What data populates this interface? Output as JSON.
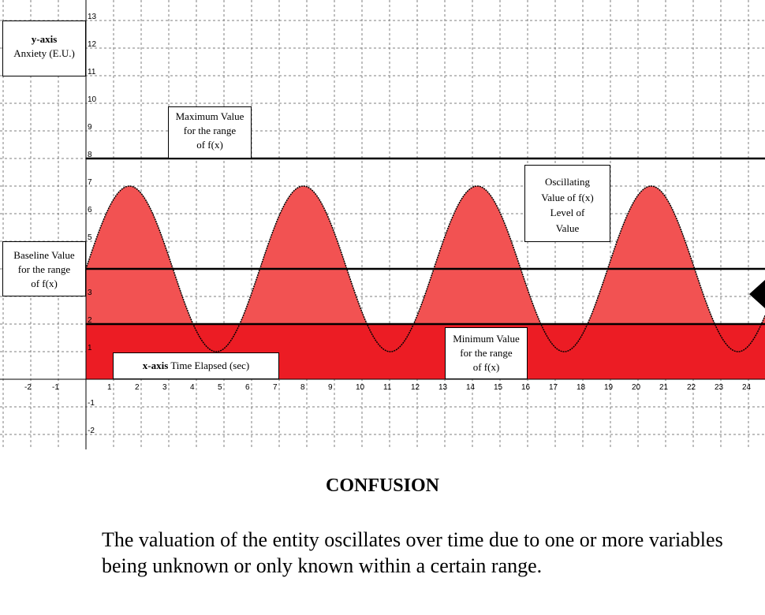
{
  "chart_data": {
    "type": "area",
    "x_ticks": [
      -2,
      -1,
      1,
      2,
      3,
      4,
      5,
      6,
      7,
      8,
      9,
      10,
      11,
      12,
      13,
      14,
      15,
      16,
      17,
      18,
      19,
      20,
      21,
      22,
      23,
      24
    ],
    "y_ticks": [
      -2,
      -1,
      1,
      2,
      3,
      5,
      6,
      7,
      8,
      9,
      10,
      11,
      12,
      13
    ],
    "xlim": [
      -3.1,
      24.6
    ],
    "ylim": [
      -2.5,
      13.5
    ],
    "grid": true,
    "grid_style": "dashed",
    "series": [
      {
        "function": "sine",
        "baseline": 4,
        "amplitude": 3,
        "period": 6.3,
        "x_start": 0,
        "x_end": 24.6,
        "fill_above_baseline": "#f25252",
        "fill_below_baseline": "#ec1c24"
      }
    ],
    "reference_lines": [
      {
        "y": 8
      },
      {
        "y": 4
      },
      {
        "y": 2
      }
    ],
    "annotations": {
      "y_axis": {
        "bold": "y-axis",
        "text": "Anxiety (E.U.)"
      },
      "x_axis": {
        "bold": "x-axis",
        "text": "Time Elapsed (sec)"
      },
      "maximum": [
        "Maximum Value",
        "for the range",
        "of f(x)"
      ],
      "baseline": [
        "Baseline Value",
        "for the range",
        "of f(x)"
      ],
      "minimum": [
        "Minimum Value",
        "for the range",
        "of f(x)"
      ],
      "oscillating": [
        "Oscillating",
        "Value of f(x)",
        "Level of",
        "Value"
      ]
    }
  },
  "title": "CONFUSION",
  "description": "The valuation of the entity oscillates over time due to one or more variables being unknown or only known within a certain range."
}
